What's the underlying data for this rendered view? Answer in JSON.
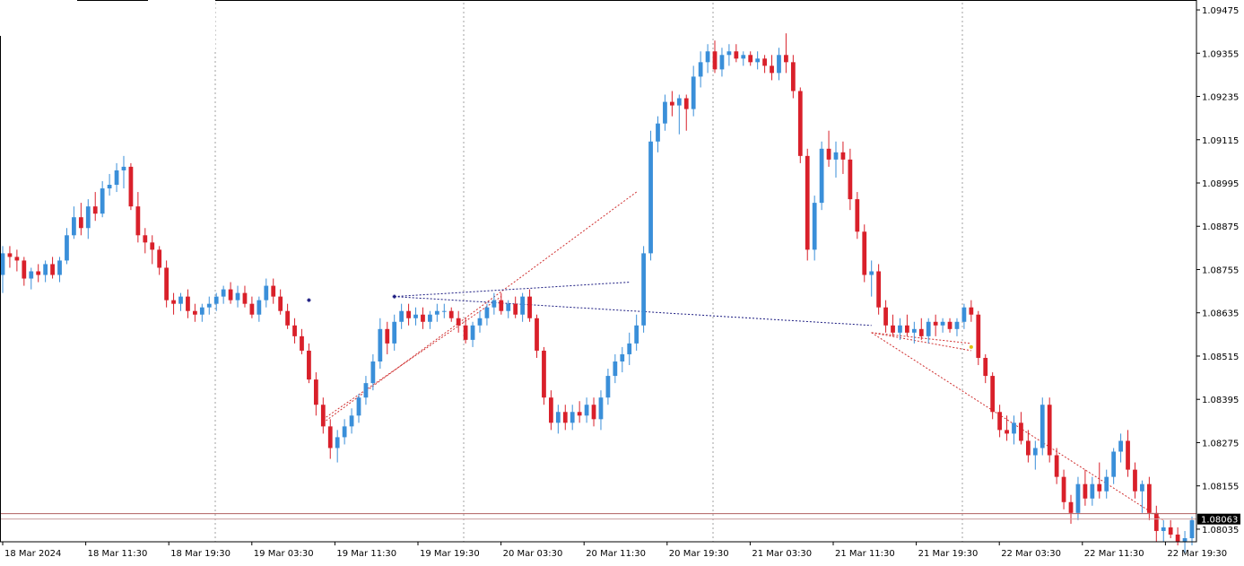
{
  "chart_data": {
    "type": "candlestick",
    "title": "",
    "xlabel": "",
    "ylabel": "",
    "ylim": [
      1.08,
      1.09495
    ],
    "grid": {
      "vertical": "dotted",
      "horizontal": false
    },
    "y_ticks": [
      "1.09475",
      "1.09355",
      "1.09235",
      "1.09115",
      "1.08995",
      "1.08875",
      "1.08755",
      "1.08635",
      "1.08515",
      "1.08395",
      "1.08275",
      "1.08155",
      "1.08035"
    ],
    "x_ticks": [
      "18 Mar 2024",
      "18 Mar 11:30",
      "18 Mar 19:30",
      "19 Mar 03:30",
      "19 Mar 11:30",
      "19 Mar 19:30",
      "20 Mar 03:30",
      "20 Mar 11:30",
      "20 Mar 19:30",
      "21 Mar 03:30",
      "21 Mar 11:30",
      "21 Mar 19:30",
      "22 Mar 03:30",
      "22 Mar 11:30",
      "22 Mar 19:30"
    ],
    "current_price": "1.08063",
    "current_price_value": 1.08063,
    "upper_price_line_value": 1.08078,
    "colors": {
      "bull": "#3a8fd9",
      "bear": "#d9202a",
      "grid": "#a0a0a0",
      "price_line": "#b06060",
      "price_tag": "#000000",
      "trend_red": "#d03030",
      "trend_blue": "#1a1a80",
      "marker_yellow": "#e0c000"
    },
    "candles_ohlc": [
      [
        1.0874,
        1.0882,
        1.0869,
        1.088
      ],
      [
        1.088,
        1.0882,
        1.0876,
        1.0879
      ],
      [
        1.0879,
        1.0881,
        1.0875,
        1.0878
      ],
      [
        1.0878,
        1.0879,
        1.0871,
        1.0873
      ],
      [
        1.0873,
        1.0876,
        1.087,
        1.0875
      ],
      [
        1.0875,
        1.0877,
        1.0872,
        1.0874
      ],
      [
        1.0874,
        1.0878,
        1.0872,
        1.0877
      ],
      [
        1.0877,
        1.0879,
        1.0873,
        1.0874
      ],
      [
        1.0874,
        1.0879,
        1.0872,
        1.0878
      ],
      [
        1.0878,
        1.0887,
        1.0877,
        1.0885
      ],
      [
        1.0885,
        1.0893,
        1.0884,
        1.089
      ],
      [
        1.089,
        1.0894,
        1.0885,
        1.0887
      ],
      [
        1.0887,
        1.0895,
        1.0884,
        1.0893
      ],
      [
        1.0893,
        1.0897,
        1.0889,
        1.0891
      ],
      [
        1.0891,
        1.09,
        1.089,
        1.0898
      ],
      [
        1.0898,
        1.0902,
        1.0896,
        1.0899
      ],
      [
        1.0899,
        1.0905,
        1.0897,
        1.0903
      ],
      [
        1.0903,
        1.0907,
        1.0898,
        1.0904
      ],
      [
        1.0904,
        1.0905,
        1.0892,
        1.0893
      ],
      [
        1.0893,
        1.0897,
        1.0883,
        1.0885
      ],
      [
        1.0885,
        1.0887,
        1.088,
        1.0883
      ],
      [
        1.0883,
        1.0885,
        1.0877,
        1.0881
      ],
      [
        1.0881,
        1.0882,
        1.0874,
        1.0876
      ],
      [
        1.0876,
        1.0878,
        1.0865,
        1.0867
      ],
      [
        1.0867,
        1.0869,
        1.0863,
        1.0866
      ],
      [
        1.0866,
        1.0869,
        1.0864,
        1.0868
      ],
      [
        1.0868,
        1.087,
        1.0862,
        1.0864
      ],
      [
        1.0864,
        1.0866,
        1.0861,
        1.0863
      ],
      [
        1.0863,
        1.0866,
        1.0861,
        1.0865
      ],
      [
        1.0865,
        1.0868,
        1.0863,
        1.0866
      ],
      [
        1.0866,
        1.0869,
        1.0864,
        1.0868
      ],
      [
        1.0868,
        1.0871,
        1.0866,
        1.087
      ],
      [
        1.087,
        1.0872,
        1.0866,
        1.0867
      ],
      [
        1.0867,
        1.0871,
        1.0865,
        1.0869
      ],
      [
        1.0869,
        1.0871,
        1.0865,
        1.0866
      ],
      [
        1.0866,
        1.0868,
        1.0862,
        1.0863
      ],
      [
        1.0863,
        1.0868,
        1.0861,
        1.0867
      ],
      [
        1.0867,
        1.0873,
        1.0865,
        1.0871
      ],
      [
        1.0871,
        1.0873,
        1.0866,
        1.0868
      ],
      [
        1.0868,
        1.087,
        1.0863,
        1.0864
      ],
      [
        1.0864,
        1.0866,
        1.0859,
        1.086
      ],
      [
        1.086,
        1.0862,
        1.0855,
        1.0857
      ],
      [
        1.0857,
        1.0859,
        1.0852,
        1.0853
      ],
      [
        1.0853,
        1.0855,
        1.0844,
        1.0845
      ],
      [
        1.0845,
        1.0847,
        1.0835,
        1.0838
      ],
      [
        1.0838,
        1.084,
        1.083,
        1.0832
      ],
      [
        1.0832,
        1.0834,
        1.0823,
        1.0826
      ],
      [
        1.0826,
        1.0831,
        1.0822,
        1.0829
      ],
      [
        1.0829,
        1.0834,
        1.0827,
        1.0832
      ],
      [
        1.0832,
        1.0837,
        1.083,
        1.0835
      ],
      [
        1.0835,
        1.0841,
        1.0833,
        1.084
      ],
      [
        1.084,
        1.0846,
        1.0838,
        1.0844
      ],
      [
        1.0844,
        1.0852,
        1.0842,
        1.085
      ],
      [
        1.085,
        1.0862,
        1.0848,
        1.0859
      ],
      [
        1.0859,
        1.0861,
        1.0852,
        1.0855
      ],
      [
        1.0855,
        1.0863,
        1.0853,
        1.0861
      ],
      [
        1.0861,
        1.0866,
        1.0859,
        1.0864
      ],
      [
        1.0864,
        1.0866,
        1.086,
        1.0862
      ],
      [
        1.0862,
        1.0865,
        1.086,
        1.0863
      ],
      [
        1.0863,
        1.0865,
        1.0859,
        1.0861
      ],
      [
        1.0861,
        1.0864,
        1.0859,
        1.0863
      ],
      [
        1.0863,
        1.0866,
        1.0861,
        1.0864
      ],
      [
        1.0864,
        1.0866,
        1.0862,
        1.0864
      ],
      [
        1.0864,
        1.0865,
        1.0861,
        1.0862
      ],
      [
        1.0862,
        1.0864,
        1.0858,
        1.086
      ],
      [
        1.086,
        1.0862,
        1.0855,
        1.0856
      ],
      [
        1.0856,
        1.0861,
        1.0854,
        1.086
      ],
      [
        1.086,
        1.0864,
        1.0858,
        1.0862
      ],
      [
        1.0862,
        1.0866,
        1.086,
        1.0865
      ],
      [
        1.0865,
        1.0869,
        1.0863,
        1.0867
      ],
      [
        1.0867,
        1.0869,
        1.0863,
        1.0864
      ],
      [
        1.0864,
        1.0867,
        1.0862,
        1.0866
      ],
      [
        1.0866,
        1.0868,
        1.0862,
        1.0863
      ],
      [
        1.0863,
        1.0869,
        1.0861,
        1.0868
      ],
      [
        1.0868,
        1.087,
        1.0861,
        1.0862
      ],
      [
        1.0862,
        1.0863,
        1.0851,
        1.0853
      ],
      [
        1.0853,
        1.0854,
        1.0838,
        1.084
      ],
      [
        1.084,
        1.0842,
        1.0831,
        1.0833
      ],
      [
        1.0833,
        1.0838,
        1.083,
        1.0836
      ],
      [
        1.0836,
        1.0838,
        1.0831,
        1.0833
      ],
      [
        1.0833,
        1.0838,
        1.0831,
        1.0836
      ],
      [
        1.0836,
        1.0839,
        1.0833,
        1.0835
      ],
      [
        1.0835,
        1.084,
        1.0833,
        1.0838
      ],
      [
        1.0838,
        1.084,
        1.0832,
        1.0834
      ],
      [
        1.0834,
        1.0842,
        1.0831,
        1.084
      ],
      [
        1.084,
        1.0848,
        1.0838,
        1.0846
      ],
      [
        1.0846,
        1.0852,
        1.0844,
        1.085
      ],
      [
        1.085,
        1.0854,
        1.0847,
        1.0852
      ],
      [
        1.0852,
        1.0858,
        1.0849,
        1.0855
      ],
      [
        1.0855,
        1.0863,
        1.0853,
        1.086
      ],
      [
        1.086,
        1.0882,
        1.0858,
        1.088
      ],
      [
        1.088,
        1.0914,
        1.0878,
        1.0911
      ],
      [
        1.0911,
        1.0918,
        1.0908,
        1.0916
      ],
      [
        1.0916,
        1.0924,
        1.0914,
        1.0922
      ],
      [
        1.0922,
        1.0925,
        1.0918,
        1.0921
      ],
      [
        1.0921,
        1.0924,
        1.0913,
        1.0923
      ],
      [
        1.0923,
        1.0924,
        1.0914,
        1.092
      ],
      [
        1.092,
        1.0932,
        1.0918,
        1.0929
      ],
      [
        1.0929,
        1.0936,
        1.0926,
        1.0933
      ],
      [
        1.0933,
        1.0938,
        1.093,
        1.0936
      ],
      [
        1.0936,
        1.0939,
        1.093,
        1.0931
      ],
      [
        1.0931,
        1.0937,
        1.0929,
        1.0935
      ],
      [
        1.0935,
        1.0938,
        1.0932,
        1.0936
      ],
      [
        1.0936,
        1.0938,
        1.0933,
        1.0934
      ],
      [
        1.0934,
        1.0936,
        1.0932,
        1.0935
      ],
      [
        1.0935,
        1.0936,
        1.0932,
        1.0933
      ],
      [
        1.0933,
        1.0936,
        1.0931,
        1.0934
      ],
      [
        1.0934,
        1.0935,
        1.093,
        1.0932
      ],
      [
        1.0932,
        1.0935,
        1.0928,
        1.093
      ],
      [
        1.093,
        1.0937,
        1.0928,
        1.0935
      ],
      [
        1.0935,
        1.0941,
        1.093,
        1.0933
      ],
      [
        1.0933,
        1.0935,
        1.0923,
        1.0925
      ],
      [
        1.0925,
        1.0926,
        1.0905,
        1.0907
      ],
      [
        1.0907,
        1.0909,
        1.0878,
        1.0881
      ],
      [
        1.0881,
        1.0896,
        1.0878,
        1.0894
      ],
      [
        1.0894,
        1.0911,
        1.0892,
        1.0909
      ],
      [
        1.0909,
        1.0914,
        1.0904,
        1.0906
      ],
      [
        1.0906,
        1.0911,
        1.0901,
        1.0908
      ],
      [
        1.0908,
        1.0911,
        1.0902,
        1.0906
      ],
      [
        1.0906,
        1.0909,
        1.0892,
        1.0895
      ],
      [
        1.0895,
        1.0897,
        1.0884,
        1.0886
      ],
      [
        1.0886,
        1.0888,
        1.0872,
        1.0874
      ],
      [
        1.0874,
        1.0878,
        1.0868,
        1.0875
      ],
      [
        1.0875,
        1.0877,
        1.0863,
        1.0865
      ],
      [
        1.0865,
        1.0867,
        1.0858,
        1.086
      ],
      [
        1.086,
        1.0863,
        1.0857,
        1.0858
      ],
      [
        1.0858,
        1.0862,
        1.0856,
        1.086
      ],
      [
        1.086,
        1.0863,
        1.0857,
        1.0858
      ],
      [
        1.0858,
        1.0861,
        1.0855,
        1.0859
      ],
      [
        1.0859,
        1.0862,
        1.0856,
        1.0857
      ],
      [
        1.0857,
        1.0862,
        1.0855,
        1.0861
      ],
      [
        1.0861,
        1.0863,
        1.0857,
        1.086
      ],
      [
        1.086,
        1.0862,
        1.0858,
        1.0861
      ],
      [
        1.0861,
        1.0862,
        1.0858,
        1.0859
      ],
      [
        1.0859,
        1.0862,
        1.0857,
        1.0861
      ],
      [
        1.0861,
        1.0866,
        1.0859,
        1.0865
      ],
      [
        1.0865,
        1.0867,
        1.0861,
        1.0863
      ],
      [
        1.0863,
        1.0864,
        1.0849,
        1.0851
      ],
      [
        1.0851,
        1.0852,
        1.0844,
        1.0846
      ],
      [
        1.0846,
        1.0847,
        1.0834,
        1.0836
      ],
      [
        1.0836,
        1.0838,
        1.0829,
        1.0831
      ],
      [
        1.0831,
        1.0835,
        1.0828,
        1.083
      ],
      [
        1.083,
        1.0835,
        1.0827,
        1.0833
      ],
      [
        1.0833,
        1.0836,
        1.0827,
        1.0828
      ],
      [
        1.0828,
        1.0831,
        1.0822,
        1.0824
      ],
      [
        1.0824,
        1.0828,
        1.082,
        1.0826
      ],
      [
        1.0826,
        1.084,
        1.0824,
        1.0838
      ],
      [
        1.0838,
        1.084,
        1.0822,
        1.0824
      ],
      [
        1.0824,
        1.0826,
        1.0816,
        1.0818
      ],
      [
        1.0818,
        1.082,
        1.0809,
        1.0811
      ],
      [
        1.0811,
        1.0813,
        1.0805,
        1.0808
      ],
      [
        1.0808,
        1.0818,
        1.0806,
        1.0816
      ],
      [
        1.0816,
        1.082,
        1.081,
        1.0812
      ],
      [
        1.0812,
        1.0818,
        1.081,
        1.0816
      ],
      [
        1.0816,
        1.0822,
        1.0812,
        1.0814
      ],
      [
        1.0814,
        1.082,
        1.0812,
        1.0818
      ],
      [
        1.0818,
        1.0826,
        1.0816,
        1.0825
      ],
      [
        1.0825,
        1.083,
        1.0822,
        1.0828
      ],
      [
        1.0828,
        1.0831,
        1.0818,
        1.082
      ],
      [
        1.082,
        1.0822,
        1.0812,
        1.0814
      ],
      [
        1.0814,
        1.0817,
        1.0808,
        1.0816
      ],
      [
        1.0816,
        1.0818,
        1.0806,
        1.0808
      ],
      [
        1.0808,
        1.081,
        1.08,
        1.0803
      ],
      [
        1.0803,
        1.0806,
        1.08,
        1.0804
      ],
      [
        1.0804,
        1.0806,
        1.0801,
        1.0802
      ],
      [
        1.0802,
        1.0804,
        1.0799,
        1.08
      ],
      [
        1.08,
        1.0803,
        1.0797,
        1.0801
      ],
      [
        1.0801,
        1.0807,
        1.0799,
        1.0806
      ]
    ]
  }
}
